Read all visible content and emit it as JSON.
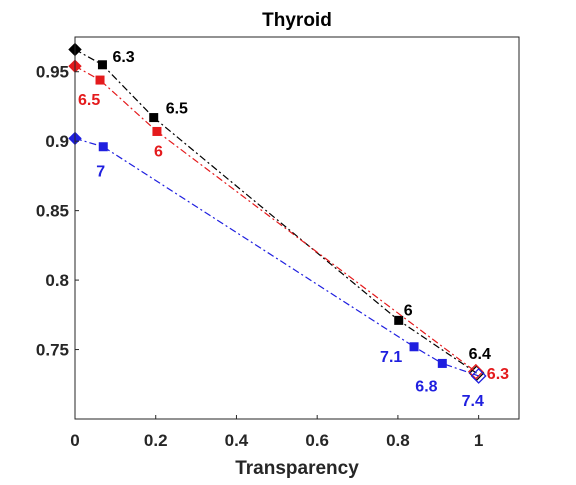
{
  "chart_data": {
    "type": "line",
    "title": "Thyroid",
    "xlabel": "Transparency",
    "ylabel": "",
    "xlim": [
      0,
      1.1
    ],
    "ylim": [
      0.7,
      0.975
    ],
    "x_ticks": [
      "0",
      "0.2",
      "0.4",
      "0.6",
      "0.8",
      "1"
    ],
    "y_ticks": [
      "0.75",
      "0.8",
      "0.85",
      "0.9",
      "0.95"
    ],
    "grid": false,
    "legend": "none",
    "series": [
      {
        "color": "#000000",
        "line_style": "dash-dot",
        "start_marker": "diamond",
        "end_marker": "diamond-open",
        "points": [
          {
            "x": 0.0,
            "y": 0.966,
            "label": ""
          },
          {
            "x": 0.068,
            "y": 0.955,
            "label": "6.3"
          },
          {
            "x": 0.195,
            "y": 0.917,
            "label": "6.5"
          },
          {
            "x": 0.802,
            "y": 0.771,
            "label": "6"
          },
          {
            "x": 0.995,
            "y": 0.733,
            "label": "6.4"
          }
        ]
      },
      {
        "color": "#e41a1c",
        "line_style": "dash-dot",
        "start_marker": "diamond",
        "end_marker": "diamond-open",
        "points": [
          {
            "x": 0.0,
            "y": 0.954,
            "label": ""
          },
          {
            "x": 0.062,
            "y": 0.944,
            "label": "6.5"
          },
          {
            "x": 0.203,
            "y": 0.907,
            "label": "6"
          },
          {
            "x": 0.993,
            "y": 0.734,
            "label": "6.3"
          }
        ]
      },
      {
        "color": "#1f1fdf",
        "line_style": "dash-dot",
        "start_marker": "diamond",
        "end_marker": "diamond-open",
        "points": [
          {
            "x": 0.0,
            "y": 0.902,
            "label": ""
          },
          {
            "x": 0.07,
            "y": 0.896,
            "label": "7"
          },
          {
            "x": 0.84,
            "y": 0.752,
            "label": "7.1"
          },
          {
            "x": 0.91,
            "y": 0.74,
            "label": "6.8"
          },
          {
            "x": 1.0,
            "y": 0.731,
            "label": "7.4"
          }
        ]
      }
    ]
  }
}
